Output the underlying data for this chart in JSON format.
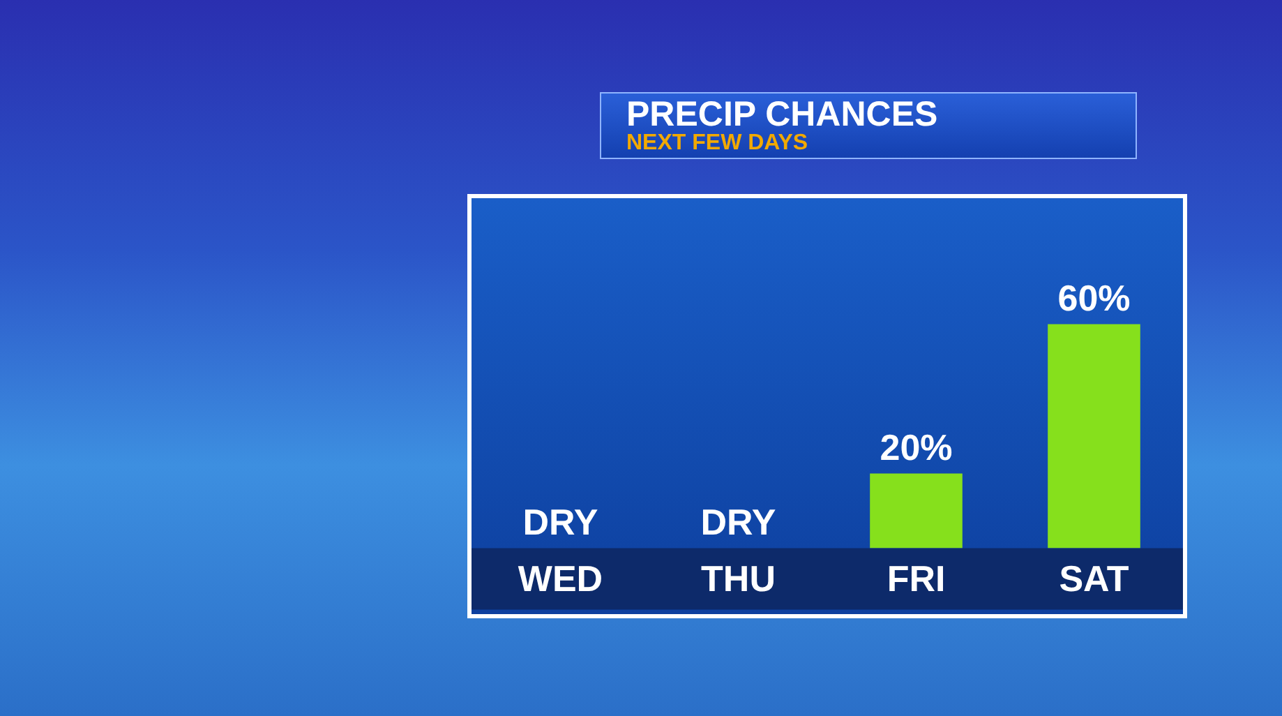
{
  "chart_data": {
    "type": "bar",
    "title": "PRECIP CHANCES",
    "subtitle": "NEXT FEW DAYS",
    "categories": [
      "WED",
      "THU",
      "FRI",
      "SAT"
    ],
    "values": [
      0,
      0,
      20,
      60
    ],
    "value_labels": [
      "DRY",
      "DRY",
      "20%",
      "60%"
    ],
    "color": "#86e01c",
    "tick_labels": "x",
    "grid": false
  }
}
